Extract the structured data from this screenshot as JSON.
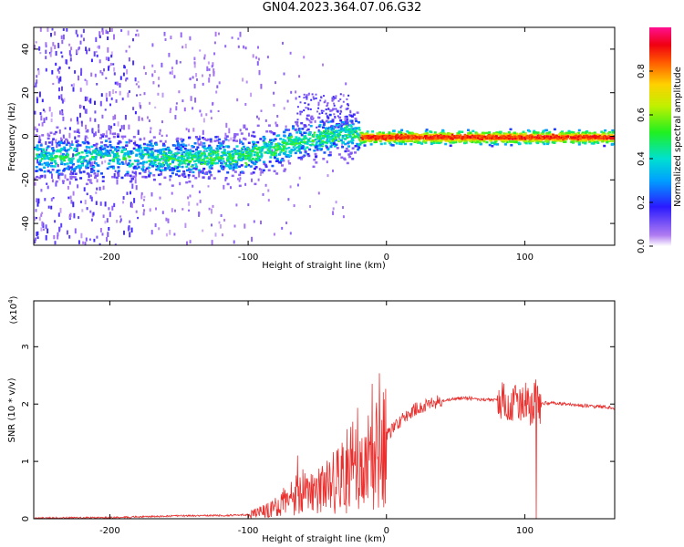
{
  "title": "GN04.2023.364.07.06.G32",
  "colors": {
    "snr_line": "#e8302e",
    "axis": "#000000",
    "background": "#ffffff"
  },
  "chart_data": [
    {
      "type": "heatmap",
      "xlabel": "Height of straight line (km)",
      "ylabel": "Frequency (Hz)",
      "xlim": [
        -255,
        165
      ],
      "ylim": [
        -50,
        50
      ],
      "x_ticks": [
        -200,
        -100,
        0,
        100
      ],
      "y_ticks": [
        -40,
        -20,
        0,
        20,
        40
      ],
      "x_tick_labels": [
        "-200",
        "-100",
        "0",
        "100"
      ],
      "y_tick_labels": [
        "-40",
        "-20",
        "0",
        "20",
        "40"
      ],
      "colorbar": {
        "label": "Normalized spectral amplitude",
        "range": [
          0,
          1
        ],
        "ticks": [
          0.0,
          0.2,
          0.4,
          0.6,
          0.8
        ],
        "tick_labels": [
          "0.0",
          "0.2",
          "0.4",
          "0.6",
          "0.8"
        ],
        "colormap": "rainbow"
      },
      "ridge": {
        "x": [
          -255,
          -200,
          -150,
          -100,
          -75,
          -50,
          -30,
          -20,
          0,
          50,
          100,
          165
        ],
        "freq": [
          -9,
          -9,
          -10,
          -8,
          -4,
          0,
          2,
          0,
          0,
          0,
          0,
          0
        ]
      }
    },
    {
      "type": "line",
      "xlabel": "Height of straight line (km)",
      "ylabel": "SNR (10 * v/v)",
      "yscale_label": "(x10",
      "yscale_exp": "4",
      "yscale_close": ")",
      "xlim": [
        -255,
        165
      ],
      "ylim": [
        0,
        3.8
      ],
      "x_ticks": [
        -200,
        -100,
        0,
        100
      ],
      "y_ticks": [
        0,
        1,
        2,
        3
      ],
      "x_tick_labels": [
        "-200",
        "-100",
        "0",
        "100"
      ],
      "y_tick_labels": [
        "0",
        "1",
        "2",
        "3"
      ],
      "series": [
        {
          "x": [
            -255,
            -200,
            -150,
            -110,
            -100,
            -90,
            -80,
            -70,
            -60,
            -50,
            -40,
            -30,
            -20,
            -10,
            0,
            10,
            20,
            30,
            40,
            50,
            60,
            70,
            80,
            90,
            100,
            105,
            108,
            110,
            115,
            130,
            150,
            165
          ],
          "y": [
            0.01,
            0.02,
            0.05,
            0.06,
            0.07,
            0.12,
            0.2,
            0.35,
            0.5,
            0.45,
            0.6,
            0.85,
            1.05,
            1.25,
            1.45,
            1.7,
            1.9,
            2.0,
            2.05,
            2.1,
            2.1,
            2.08,
            2.07,
            2.05,
            2.05,
            1.9,
            2.2,
            2.0,
            2.02,
            2.0,
            1.96,
            1.93
          ]
        }
      ]
    }
  ]
}
